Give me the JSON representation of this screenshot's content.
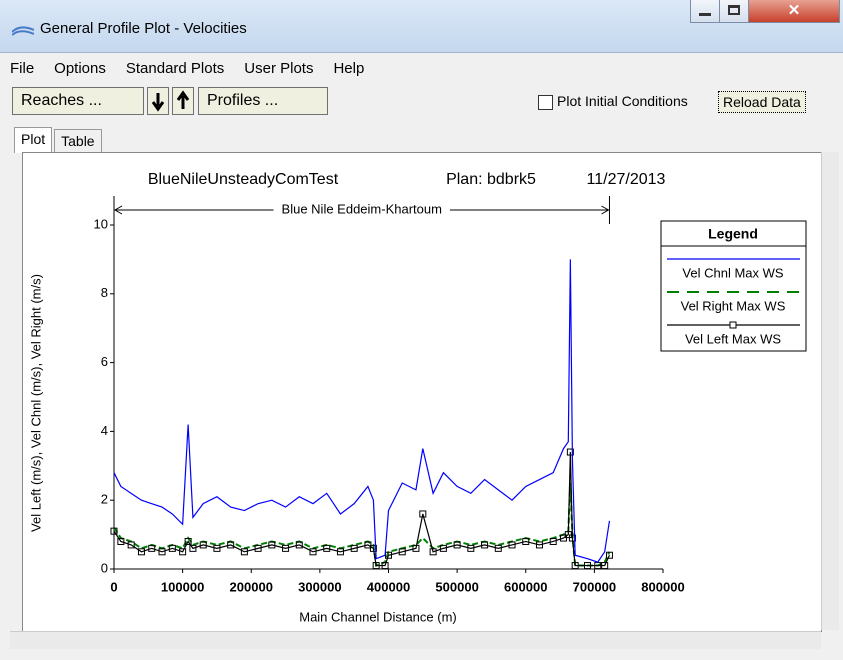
{
  "window": {
    "title": "General Profile Plot - Velocities",
    "menu": [
      "File",
      "Options",
      "Standard Plots",
      "User Plots",
      "Help"
    ],
    "buttons": {
      "reaches": "Reaches ...",
      "profiles": "Profiles ...",
      "reload": "Reload Data"
    },
    "checkbox": "Plot Initial Conditions",
    "tabs": [
      "Plot",
      "Table"
    ]
  },
  "chart_data": {
    "type": "line",
    "title": "BlueNileUnsteadyComTest",
    "plan": "Plan: bdbrk5",
    "date": "11/27/2013",
    "annotation": "Blue Nile Eddeim-Khartoum",
    "x_label": "Main Channel Distance (m)",
    "y_label": "Vel Left (m/s),  Vel Chnl (m/s),  Vel Right (m/s)",
    "legend_title": "Legend",
    "x": [
      0,
      10000,
      25000,
      40000,
      55000,
      70000,
      85000,
      100000,
      108000,
      115000,
      130000,
      150000,
      170000,
      190000,
      210000,
      230000,
      250000,
      270000,
      290000,
      310000,
      330000,
      350000,
      370000,
      378000,
      382000,
      395000,
      400000,
      420000,
      440000,
      450000,
      465000,
      480000,
      500000,
      520000,
      540000,
      560000,
      580000,
      600000,
      620000,
      640000,
      655000,
      662000,
      665000,
      668000,
      672000,
      690000,
      705000,
      715000,
      722000
    ],
    "series": [
      {
        "name": "Vel Chnl Max WS",
        "color": "#0000ff",
        "values": [
          2.8,
          2.4,
          2.2,
          2.0,
          1.9,
          1.8,
          1.6,
          1.3,
          4.2,
          1.5,
          1.9,
          2.1,
          1.8,
          1.7,
          1.9,
          2.0,
          1.8,
          2.1,
          1.9,
          2.2,
          1.6,
          1.9,
          2.4,
          2.0,
          0.3,
          0.4,
          1.7,
          2.5,
          2.3,
          3.5,
          2.2,
          2.8,
          2.4,
          2.2,
          2.6,
          2.3,
          2.0,
          2.4,
          2.6,
          2.8,
          3.5,
          3.7,
          9.0,
          3.2,
          0.4,
          0.3,
          0.2,
          0.5,
          1.4
        ]
      },
      {
        "name": "Vel Right Max WS",
        "color": "#008000",
        "values": [
          1.2,
          0.9,
          0.8,
          0.6,
          0.7,
          0.6,
          0.7,
          0.6,
          0.9,
          0.7,
          0.8,
          0.7,
          0.8,
          0.6,
          0.7,
          0.8,
          0.7,
          0.8,
          0.6,
          0.7,
          0.6,
          0.7,
          0.8,
          0.7,
          0.1,
          0.2,
          0.5,
          0.6,
          0.7,
          0.9,
          0.6,
          0.7,
          0.8,
          0.7,
          0.8,
          0.7,
          0.8,
          0.9,
          0.8,
          0.9,
          1.0,
          1.1,
          2.5,
          1.0,
          0.1,
          0.1,
          0.1,
          0.2,
          0.5
        ]
      },
      {
        "name": "Vel Left Max WS",
        "color": "#000000",
        "values": [
          1.1,
          0.8,
          0.7,
          0.5,
          0.6,
          0.5,
          0.6,
          0.5,
          0.8,
          0.6,
          0.7,
          0.6,
          0.7,
          0.5,
          0.6,
          0.7,
          0.6,
          0.7,
          0.5,
          0.6,
          0.5,
          0.6,
          0.7,
          0.6,
          0.1,
          0.1,
          0.4,
          0.5,
          0.6,
          1.6,
          0.5,
          0.6,
          0.7,
          0.6,
          0.7,
          0.6,
          0.7,
          0.8,
          0.7,
          0.8,
          0.9,
          1.0,
          3.4,
          0.9,
          0.1,
          0.1,
          0.1,
          0.1,
          0.4
        ]
      }
    ],
    "xlim": [
      0,
      800000
    ],
    "xticks": [
      0,
      100000,
      200000,
      300000,
      400000,
      500000,
      600000,
      700000,
      800000
    ],
    "ylim": [
      0,
      10
    ],
    "yticks": [
      0,
      2,
      4,
      6,
      8,
      10
    ],
    "grid": false
  }
}
